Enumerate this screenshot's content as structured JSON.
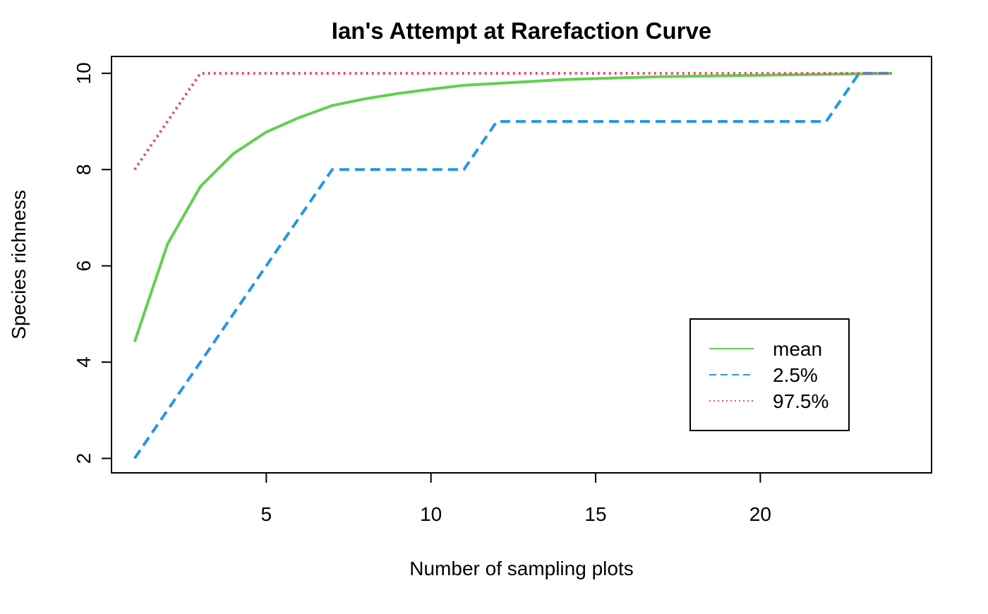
{
  "chart_data": {
    "type": "line",
    "title": "Ian's Attempt at Rarefaction Curve",
    "xlabel": "Number of sampling plots",
    "ylabel": "Species richness",
    "xlim": [
      0.3,
      25.2
    ],
    "ylim": [
      1.7,
      10.35
    ],
    "x_ticks": [
      5,
      10,
      15,
      20
    ],
    "y_ticks": [
      2,
      4,
      6,
      8,
      10
    ],
    "grid": false,
    "legend_position": "bottom-right",
    "x": [
      1,
      2,
      3,
      4,
      5,
      6,
      7,
      8,
      9,
      10,
      11,
      12,
      13,
      14,
      15,
      16,
      17,
      18,
      19,
      20,
      21,
      22,
      23,
      24
    ],
    "series": [
      {
        "name": "mean",
        "color": "#61D04F",
        "line_style": "solid",
        "values": [
          4.42,
          6.45,
          7.65,
          8.33,
          8.78,
          9.08,
          9.33,
          9.47,
          9.58,
          9.67,
          9.75,
          9.79,
          9.83,
          9.87,
          9.89,
          9.91,
          9.93,
          9.94,
          9.95,
          9.96,
          9.97,
          9.98,
          9.99,
          10.0
        ]
      },
      {
        "name": "2.5%",
        "color": "#2297E6",
        "line_style": "dashed",
        "values": [
          2,
          3,
          4,
          5,
          6,
          7,
          8,
          8,
          8,
          8,
          8,
          9,
          9,
          9,
          9,
          9,
          9,
          9,
          9,
          9,
          9,
          9,
          10,
          10
        ]
      },
      {
        "name": "97.5%",
        "color": "#DF536B",
        "line_style": "dotted",
        "values": [
          8,
          9,
          10,
          10,
          10,
          10,
          10,
          10,
          10,
          10,
          10,
          10,
          10,
          10,
          10,
          10,
          10,
          10,
          10,
          10,
          10,
          10,
          10,
          10
        ]
      }
    ]
  }
}
